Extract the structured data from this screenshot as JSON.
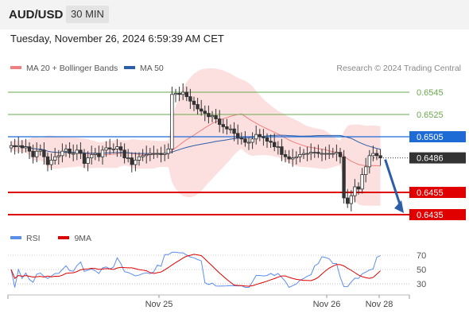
{
  "header": {
    "symbol": "AUD/USD",
    "timeframe": "30 MIN"
  },
  "timestamp": "Tuesday, November 26, 2024 6:59:39 AM CET",
  "legend": {
    "ma20_label": "MA 20 + Bollinger Bands",
    "ma20_color": "#f08080",
    "ma50_label": "MA 50",
    "ma50_color": "#2d5fa8"
  },
  "credit": "Research © 2024 Trading Central",
  "chart_data": [
    {
      "type": "candlestick",
      "levels": [
        {
          "value": 0.6545,
          "label": "0.6545",
          "role": "resistance",
          "color": "#6aa84f"
        },
        {
          "value": 0.6525,
          "label": "0.6525",
          "role": "resistance",
          "color": "#6aa84f"
        },
        {
          "value": 0.6505,
          "label": "0.6505",
          "role": "pivot",
          "color": "#1f6bd6"
        },
        {
          "value": 0.6486,
          "label": "0.6486",
          "role": "last-price",
          "color": "#333333"
        },
        {
          "value": 0.6455,
          "label": "0.6455",
          "role": "support",
          "color": "#e00000"
        },
        {
          "value": 0.6435,
          "label": "0.6435",
          "role": "support",
          "color": "#e00000"
        }
      ],
      "ylim": [
        0.6426,
        0.656
      ],
      "x_ticks": [
        "Nov 25",
        "Nov 26",
        "Nov 28"
      ],
      "closes": [
        0.6497,
        0.6496,
        0.6497,
        0.6495,
        0.6496,
        0.6492,
        0.6487,
        0.6492,
        0.6493,
        0.6487,
        0.648,
        0.6484,
        0.6487,
        0.6488,
        0.6492,
        0.6494,
        0.649,
        0.649,
        0.6493,
        0.649,
        0.6481,
        0.6486,
        0.6489,
        0.649,
        0.6487,
        0.6493,
        0.6495,
        0.6494,
        0.6494,
        0.6496,
        0.6493,
        0.6486,
        0.6486,
        0.648,
        0.6484,
        0.6487,
        0.6488,
        0.6489,
        0.649,
        0.649,
        0.649,
        0.6489,
        0.649,
        0.6494,
        0.6543,
        0.6544,
        0.6543,
        0.6545,
        0.6541,
        0.6537,
        0.6534,
        0.653,
        0.6528,
        0.6526,
        0.6523,
        0.6524,
        0.6521,
        0.6516,
        0.6514,
        0.6512,
        0.6512,
        0.6508,
        0.6504,
        0.6503,
        0.65,
        0.65,
        0.6503,
        0.6507,
        0.6505,
        0.6504,
        0.6501,
        0.65,
        0.6496,
        0.6496,
        0.6489,
        0.6487,
        0.6485,
        0.6486,
        0.6487,
        0.6489,
        0.649,
        0.649,
        0.6491,
        0.6491,
        0.649,
        0.649,
        0.649,
        0.649,
        0.649,
        0.6491,
        0.6487,
        0.645,
        0.6445,
        0.6452,
        0.646,
        0.6458,
        0.6471,
        0.6478,
        0.6488,
        0.649,
        0.6488,
        0.6486
      ],
      "ma20_trend": "declining band around price",
      "ma50_trend": "flat near 0.6505",
      "forecast_arrow": {
        "from": 0.6486,
        "to": 0.6435,
        "color": "#2d5fa8"
      },
      "title": ""
    },
    {
      "type": "line",
      "series": [
        {
          "name": "RSI",
          "color": "#5b8def"
        },
        {
          "name": "9MA",
          "color": "#e00000"
        }
      ],
      "y_ticks": [
        "70",
        "50",
        "30"
      ],
      "ylim": [
        20,
        80
      ]
    }
  ],
  "rsi_legend": {
    "rsi_label": "RSI",
    "rsi_color": "#5b8def",
    "ma_label": "9MA",
    "ma_color": "#e00000"
  }
}
